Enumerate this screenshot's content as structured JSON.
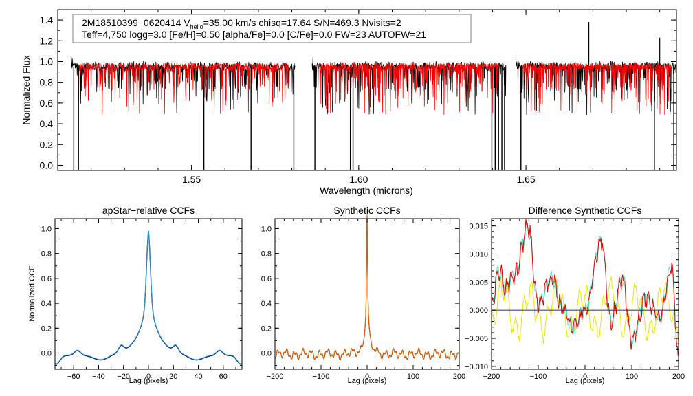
{
  "chart_data": [
    {
      "id": "spectrum",
      "type": "line",
      "xlabel": "Wavelength (microns)",
      "ylabel": "Normalized Flux",
      "xlim": [
        1.51,
        1.695
      ],
      "ylim": [
        -0.05,
        1.5
      ],
      "xticks": [
        1.55,
        1.6,
        1.65
      ],
      "xtick_labels": [
        "1.55",
        "1.60",
        "1.65"
      ],
      "yticks": [
        0.0,
        0.2,
        0.4,
        0.6,
        0.8,
        1.0,
        1.2,
        1.4
      ],
      "ytick_labels": [
        "0.0",
        "0.2",
        "0.4",
        "0.6",
        "0.8",
        "1.0",
        "1.2",
        "1.4"
      ],
      "info_box": {
        "line1_a": "2M18510399−0620414  V",
        "line1_sub": "helio",
        "line1_b": "=35.00 km/s  chisq=17.64  S/N=469.3  Nvisits=2",
        "line2": "Teff=4,750 logg=3.0 [Fe/H]=0.50 [alpha/Fe]=0.0 [C/Fe]=0.0 FW=23 AUTOFW=21"
      },
      "chips": [
        {
          "name": "blue",
          "range": [
            1.514,
            1.581
          ]
        },
        {
          "name": "green",
          "range": [
            1.586,
            1.644
          ]
        },
        {
          "name": "red",
          "range": [
            1.647,
            1.6955
          ]
        }
      ],
      "series": [
        {
          "name": "observed",
          "color": "#000000"
        },
        {
          "name": "model",
          "color": "#ff0000"
        }
      ],
      "drops": [
        1.5148,
        1.5162,
        1.5537,
        1.5678,
        1.5806,
        1.5869,
        1.5975,
        1.5983,
        1.6398,
        1.6408,
        1.6418,
        1.6428,
        1.6436,
        1.6485,
        1.6884,
        1.6942
      ],
      "spikes": [
        [
          1.6688,
          1.38
        ],
        [
          1.69,
          1.23
        ]
      ]
    },
    {
      "id": "apstar-ccf",
      "type": "line",
      "title": "apStar−relative CCFs",
      "xlabel": "Lag (pixels)",
      "ylabel": "Normalized CCF",
      "xlim": [
        -75,
        75
      ],
      "ylim": [
        -0.13,
        1.08
      ],
      "xticks": [
        -60,
        -40,
        -20,
        0,
        20,
        40,
        60
      ],
      "xtick_labels": [
        "−60",
        "−40",
        "−20",
        "0",
        "20",
        "40",
        "60"
      ],
      "yticks": [
        0.0,
        0.2,
        0.4,
        0.6,
        0.8,
        1.0
      ],
      "ytick_labels": [
        "0.0",
        "0.2",
        "0.4",
        "0.6",
        "0.8",
        "1.0"
      ],
      "series": [
        {
          "name": "ccf-1",
          "color": "#000080"
        },
        {
          "name": "ccf-2",
          "color": "#2fa8c8"
        }
      ]
    },
    {
      "id": "synthetic-ccf",
      "type": "line",
      "title": "Synthetic CCFs",
      "xlabel": "Lag (pixels)",
      "ylabel": "",
      "xlim": [
        -200,
        200
      ],
      "ylim": [
        -0.13,
        1.08
      ],
      "xticks": [
        -200,
        -100,
        0,
        100,
        200
      ],
      "xtick_labels": [
        "−200",
        "−100",
        "0",
        "100",
        "200"
      ],
      "yticks": [
        0.0,
        0.2,
        0.4,
        0.6,
        0.8,
        1.0
      ],
      "ytick_labels": [
        "0.0",
        "0.2",
        "0.4",
        "0.6",
        "0.8",
        "1.0"
      ],
      "series": [
        {
          "name": "ccf-1",
          "color": "#2a2a2a"
        },
        {
          "name": "ccf-2",
          "color": "#e06000"
        }
      ]
    },
    {
      "id": "difference-ccf",
      "type": "line",
      "title": "Difference Synthetic CCFs",
      "xlabel": "Lag (pixels)",
      "ylabel": "",
      "xlim": [
        -200,
        200
      ],
      "ylim": [
        -0.0105,
        0.0163
      ],
      "xticks": [
        -200,
        -100,
        0,
        100,
        200
      ],
      "xtick_labels": [
        "−200",
        "−100",
        "0",
        "100",
        "200"
      ],
      "yticks": [
        -0.01,
        -0.005,
        0.0,
        0.005,
        0.01,
        0.015
      ],
      "ytick_labels": [
        "−0.010",
        "−0.005",
        "0.000",
        "0.005",
        "0.010",
        "0.015"
      ],
      "zero_line_color": "#4040a0",
      "series": [
        {
          "name": "diff-1",
          "color": "#e8e800"
        },
        {
          "name": "diff-2",
          "color": "#40e0c0"
        },
        {
          "name": "diff-3",
          "color": "#e00000"
        }
      ],
      "peaks": [
        [
          -200,
          0.0005
        ],
        [
          -185,
          0.007
        ],
        [
          -170,
          0.004
        ],
        [
          -150,
          0.0065
        ],
        [
          -122,
          0.0148
        ],
        [
          -100,
          0.001
        ],
        [
          -70,
          0.0058
        ],
        [
          -50,
          0.0005
        ],
        [
          -25,
          -0.003
        ],
        [
          0,
          0.0
        ],
        [
          35,
          0.0125
        ],
        [
          55,
          -0.002
        ],
        [
          80,
          0.0055
        ],
        [
          100,
          -0.0055
        ],
        [
          130,
          0.002
        ],
        [
          160,
          -0.0015
        ],
        [
          185,
          0.0075
        ],
        [
          200,
          -0.0085
        ]
      ]
    }
  ]
}
